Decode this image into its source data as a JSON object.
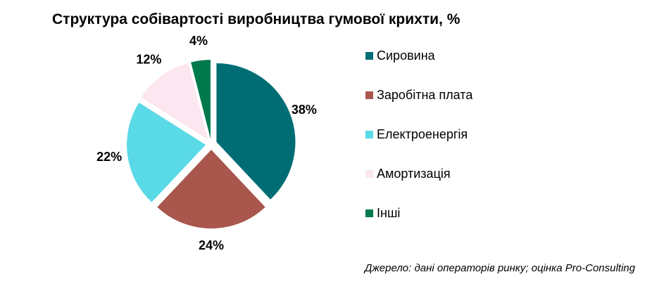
{
  "chart_data": {
    "type": "pie",
    "title": "Структура собівартості виробництва гумової крихти, %",
    "categories": [
      "Сировина",
      "Заробітна плата",
      "Електроенергія",
      "Амортизація",
      "Інші"
    ],
    "values": [
      38,
      24,
      22,
      12,
      4
    ],
    "labels": [
      "38%",
      "24%",
      "22%",
      "12%",
      "4%"
    ],
    "colors": [
      "#006d75",
      "#a9574d",
      "#5ad9e6",
      "#fce6f0",
      "#007a4d"
    ],
    "legend_position": "right",
    "exploded": true
  },
  "source_note": "Джерело: дані операторів ринку; оцінка Pro-Consulting"
}
